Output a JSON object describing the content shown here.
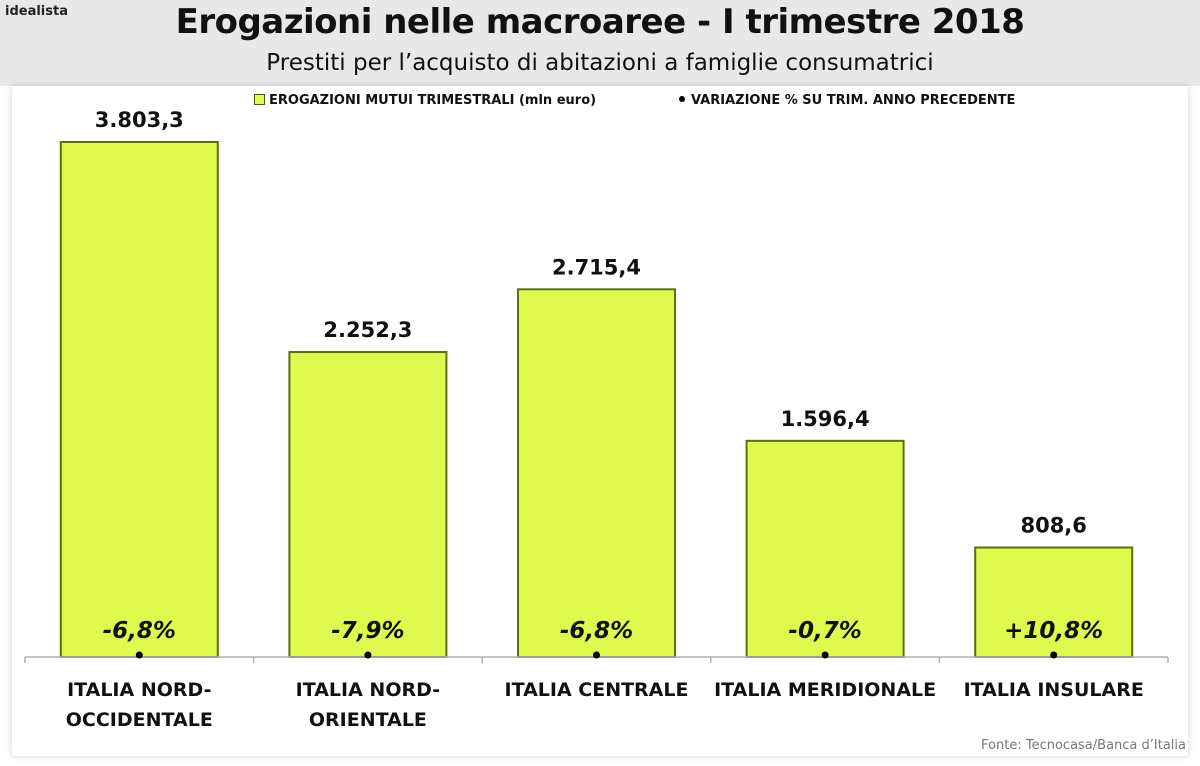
{
  "brand": "idealista",
  "title": "Erogazioni nelle macroaree - I trimestre 2018",
  "subtitle": "Prestiti per l’acquisto di abitazioni a famiglie consumatrici",
  "source": "Fonte: Tecnocasa/Banca d’Italia",
  "colors": {
    "bar": "#dff94e",
    "bar_border": "#5a6e14",
    "header_bg": "#e8e8e8"
  },
  "chart_data": {
    "type": "bar",
    "categories": [
      [
        "ITALIA NORD-",
        "OCCIDENTALE"
      ],
      [
        "ITALIA NORD-",
        "ORIENTALE"
      ],
      [
        "ITALIA CENTRALE"
      ],
      [
        "ITALIA MERIDIONALE"
      ],
      [
        "ITALIA INSULARE"
      ]
    ],
    "series": [
      {
        "name": "EROGAZIONI MUTUI TRIMESTRALI (mln euro)",
        "values": [
          3803.3,
          2252.3,
          2715.4,
          1596.4,
          808.6
        ],
        "labels": [
          "3.803,3",
          "2.252,3",
          "2.715,4",
          "1.596,4",
          "808,6"
        ]
      },
      {
        "name": "VARIAZIONE % SU TRIM. ANNO PRECEDENTE",
        "values": [
          -6.8,
          -7.9,
          -6.8,
          -0.7,
          10.8
        ],
        "labels": [
          "-6,8%",
          "-7,9%",
          "-6,8%",
          "-0,7%",
          "+10,8%"
        ]
      }
    ],
    "ylim": [
      0,
      4400
    ],
    "grid": false,
    "legend": "top"
  }
}
